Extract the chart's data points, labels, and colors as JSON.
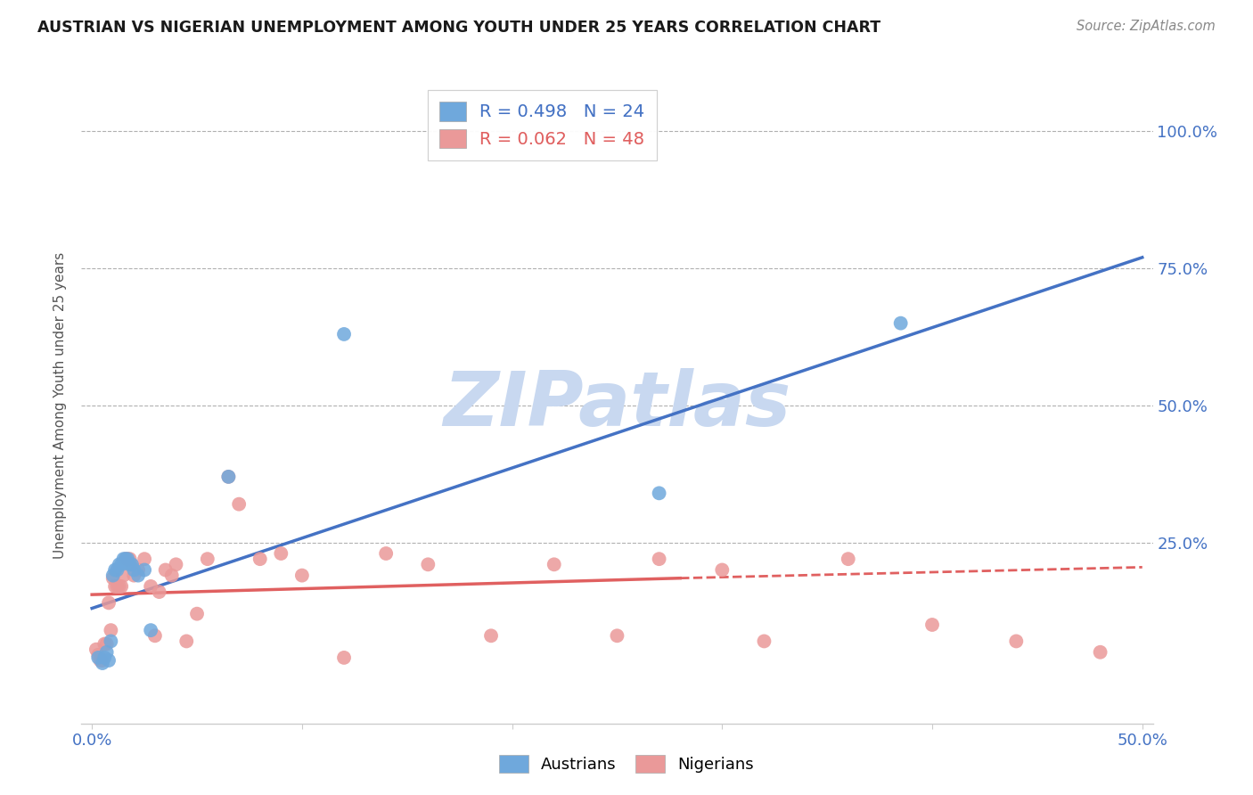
{
  "title": "AUSTRIAN VS NIGERIAN UNEMPLOYMENT AMONG YOUTH UNDER 25 YEARS CORRELATION CHART",
  "source": "Source: ZipAtlas.com",
  "ylabel": "Unemployment Among Youth under 25 years",
  "legend1_text": "R = 0.498   N = 24",
  "legend2_text": "R = 0.062   N = 48",
  "austrians_color": "#6fa8dc",
  "nigerians_color": "#ea9999",
  "trendline_austrians_color": "#4472c4",
  "trendline_nigerians_color": "#e06060",
  "watermark": "ZIPatlas",
  "watermark_color": "#c8d8f0",
  "xlim": [
    -0.005,
    0.505
  ],
  "ylim": [
    -0.08,
    1.08
  ],
  "austrians_x": [
    0.003,
    0.005,
    0.006,
    0.007,
    0.008,
    0.009,
    0.01,
    0.011,
    0.012,
    0.013,
    0.014,
    0.015,
    0.016,
    0.017,
    0.018,
    0.019,
    0.02,
    0.022,
    0.025,
    0.028,
    0.065,
    0.12,
    0.27,
    0.385
  ],
  "austrians_y": [
    0.04,
    0.03,
    0.04,
    0.05,
    0.035,
    0.07,
    0.19,
    0.2,
    0.2,
    0.21,
    0.21,
    0.22,
    0.22,
    0.22,
    0.21,
    0.21,
    0.2,
    0.19,
    0.2,
    0.09,
    0.37,
    0.63,
    0.34,
    0.65
  ],
  "nigerians_x": [
    0.002,
    0.003,
    0.004,
    0.005,
    0.006,
    0.007,
    0.008,
    0.009,
    0.01,
    0.011,
    0.012,
    0.013,
    0.014,
    0.015,
    0.016,
    0.017,
    0.018,
    0.019,
    0.02,
    0.022,
    0.025,
    0.028,
    0.03,
    0.032,
    0.035,
    0.038,
    0.04,
    0.045,
    0.05,
    0.055,
    0.065,
    0.07,
    0.08,
    0.09,
    0.1,
    0.12,
    0.14,
    0.16,
    0.19,
    0.22,
    0.25,
    0.27,
    0.3,
    0.32,
    0.36,
    0.4,
    0.44,
    0.48
  ],
  "nigerians_y": [
    0.055,
    0.045,
    0.035,
    0.035,
    0.065,
    0.065,
    0.14,
    0.09,
    0.185,
    0.17,
    0.17,
    0.17,
    0.17,
    0.19,
    0.22,
    0.22,
    0.22,
    0.21,
    0.19,
    0.2,
    0.22,
    0.17,
    0.08,
    0.16,
    0.2,
    0.19,
    0.21,
    0.07,
    0.12,
    0.22,
    0.37,
    0.32,
    0.22,
    0.23,
    0.19,
    0.04,
    0.23,
    0.21,
    0.08,
    0.21,
    0.08,
    0.22,
    0.2,
    0.07,
    0.22,
    0.1,
    0.07,
    0.05
  ],
  "trend_austrians_x0": 0.0,
  "trend_austrians_y0": 0.13,
  "trend_austrians_x1": 0.5,
  "trend_austrians_y1": 0.77,
  "trend_nigerians_x0": 0.0,
  "trend_nigerians_y0": 0.155,
  "trend_nigerians_solid_x1": 0.28,
  "trend_nigerians_solid_y1": 0.185,
  "trend_nigerians_x1": 0.5,
  "trend_nigerians_y1": 0.205
}
